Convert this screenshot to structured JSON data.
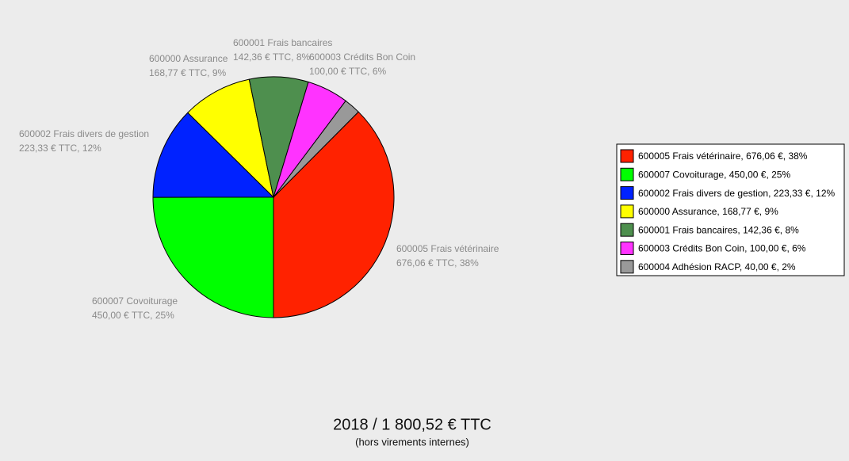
{
  "chart_data": {
    "type": "pie",
    "categories": [
      "600005 Frais vétérinaire",
      "600007 Covoiturage",
      "600002 Frais divers de gestion",
      "600000 Assurance",
      "600001 Frais bancaires",
      "600003 Crédits Bon Coin",
      null
    ],
    "values": [
      676.06,
      450.0,
      223.33,
      168.77,
      142.36,
      100.0,
      40.0
    ],
    "value_labels": [
      "676,06 € TTC, 38%",
      "450,00 € TTC, 25%",
      "223,33 € TTC, 12%",
      "168,77 € TTC, 9%",
      "142,36 € TTC, 8%",
      "100,00 € TTC, 6%",
      null
    ],
    "legend_labels": [
      "600005 Frais vétérinaire, 676,06 €, 38%",
      "600007 Covoiturage, 450,00 €, 25%",
      "600002 Frais divers de gestion, 223,33 €, 12%",
      "600000 Assurance, 168,77 €, 9%",
      "600001 Frais bancaires, 142,36 €, 8%",
      "600003 Crédits Bon Coin, 100,00 €, 6%",
      "600004 Adhésion RACP, 40,00 €, 2%"
    ],
    "colors": [
      "#ff2200",
      "#00ff00",
      "#0022ff",
      "#ffff00",
      "#4e8f4e",
      "#ff33ff",
      "#999999"
    ],
    "footer_title": "2018 / 1 800,52 €  TTC",
    "footer_subtitle": "(hors virements internes)"
  }
}
